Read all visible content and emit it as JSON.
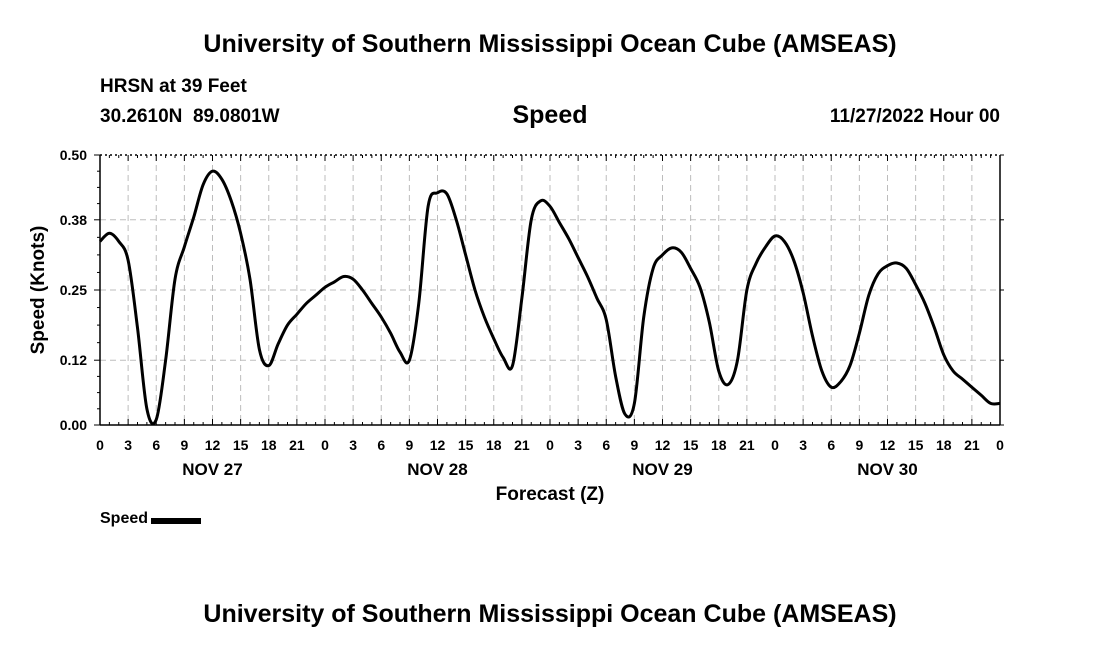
{
  "header": {
    "title": "University of Southern Mississippi Ocean Cube (AMSEAS)",
    "station": "HRSN at 39 Feet",
    "coords": "30.2610N  89.0801W",
    "subtitle": "Speed",
    "timestamp": "11/27/2022 Hour 00"
  },
  "legend": {
    "label": "Speed"
  },
  "footer": {
    "title": "University of Southern Mississippi Ocean Cube (AMSEAS)"
  },
  "chart_data": {
    "type": "line",
    "title": "Speed",
    "xlabel": "Forecast (Z)",
    "ylabel": "Speed (Knots)",
    "xlim": [
      0,
      96
    ],
    "ylim": [
      0,
      0.5
    ],
    "grid": true,
    "legend_position": "bottom-left",
    "y_ticks": [
      "0.00",
      "0.12",
      "0.25",
      "0.38",
      "0.50"
    ],
    "x_tick_labels": [
      "0",
      "3",
      "6",
      "9",
      "12",
      "15",
      "18",
      "21",
      "0",
      "3",
      "6",
      "9",
      "12",
      "15",
      "18",
      "21",
      "0",
      "3",
      "6",
      "9",
      "12",
      "15",
      "18",
      "21",
      "0",
      "3",
      "6",
      "9",
      "12",
      "15",
      "18",
      "21",
      "0"
    ],
    "day_labels": [
      {
        "label": "NOV 27",
        "hour": 12
      },
      {
        "label": "NOV 28",
        "hour": 36
      },
      {
        "label": "NOV 29",
        "hour": 60
      },
      {
        "label": "NOV 30",
        "hour": 84
      }
    ],
    "series": [
      {
        "name": "Speed",
        "color": "#000000",
        "points": [
          [
            0,
            0.34
          ],
          [
            1,
            0.355
          ],
          [
            2,
            0.34
          ],
          [
            3,
            0.305
          ],
          [
            4,
            0.18
          ],
          [
            5,
            0.03
          ],
          [
            6,
            0.01
          ],
          [
            7,
            0.12
          ],
          [
            8,
            0.27
          ],
          [
            9,
            0.33
          ],
          [
            10,
            0.385
          ],
          [
            11,
            0.445
          ],
          [
            12,
            0.47
          ],
          [
            13,
            0.455
          ],
          [
            14,
            0.415
          ],
          [
            15,
            0.355
          ],
          [
            16,
            0.27
          ],
          [
            17,
            0.14
          ],
          [
            18,
            0.11
          ],
          [
            19,
            0.15
          ],
          [
            20,
            0.185
          ],
          [
            21,
            0.205
          ],
          [
            22,
            0.225
          ],
          [
            23,
            0.24
          ],
          [
            24,
            0.255
          ],
          [
            25,
            0.265
          ],
          [
            26,
            0.275
          ],
          [
            27,
            0.27
          ],
          [
            28,
            0.25
          ],
          [
            29,
            0.225
          ],
          [
            30,
            0.2
          ],
          [
            31,
            0.17
          ],
          [
            32,
            0.135
          ],
          [
            33,
            0.12
          ],
          [
            34,
            0.225
          ],
          [
            35,
            0.405
          ],
          [
            36,
            0.43
          ],
          [
            37,
            0.428
          ],
          [
            38,
            0.38
          ],
          [
            39,
            0.315
          ],
          [
            40,
            0.25
          ],
          [
            41,
            0.2
          ],
          [
            42,
            0.16
          ],
          [
            43,
            0.125
          ],
          [
            44,
            0.11
          ],
          [
            45,
            0.235
          ],
          [
            46,
            0.38
          ],
          [
            47,
            0.415
          ],
          [
            48,
            0.405
          ],
          [
            49,
            0.375
          ],
          [
            50,
            0.345
          ],
          [
            51,
            0.31
          ],
          [
            52,
            0.275
          ],
          [
            53,
            0.235
          ],
          [
            54,
            0.195
          ],
          [
            55,
            0.09
          ],
          [
            56,
            0.02
          ],
          [
            57,
            0.04
          ],
          [
            58,
            0.2
          ],
          [
            59,
            0.29
          ],
          [
            60,
            0.315
          ],
          [
            61,
            0.328
          ],
          [
            62,
            0.32
          ],
          [
            63,
            0.29
          ],
          [
            64,
            0.255
          ],
          [
            65,
            0.19
          ],
          [
            66,
            0.1
          ],
          [
            67,
            0.075
          ],
          [
            68,
            0.12
          ],
          [
            69,
            0.25
          ],
          [
            70,
            0.3
          ],
          [
            71,
            0.33
          ],
          [
            72,
            0.35
          ],
          [
            73,
            0.34
          ],
          [
            74,
            0.305
          ],
          [
            75,
            0.245
          ],
          [
            76,
            0.165
          ],
          [
            77,
            0.1
          ],
          [
            78,
            0.07
          ],
          [
            79,
            0.08
          ],
          [
            80,
            0.11
          ],
          [
            81,
            0.17
          ],
          [
            82,
            0.24
          ],
          [
            83,
            0.28
          ],
          [
            84,
            0.295
          ],
          [
            85,
            0.3
          ],
          [
            86,
            0.29
          ],
          [
            87,
            0.26
          ],
          [
            88,
            0.225
          ],
          [
            89,
            0.18
          ],
          [
            90,
            0.13
          ],
          [
            91,
            0.1
          ],
          [
            92,
            0.085
          ],
          [
            93,
            0.07
          ],
          [
            94,
            0.055
          ],
          [
            95,
            0.04
          ],
          [
            96,
            0.04
          ]
        ]
      }
    ]
  }
}
